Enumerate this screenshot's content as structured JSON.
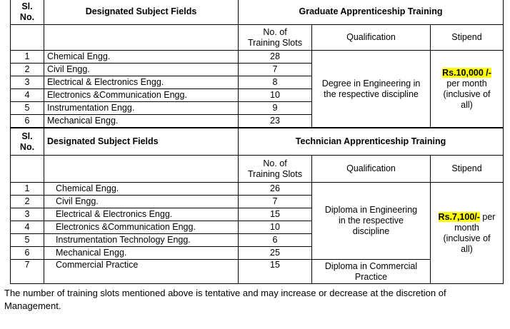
{
  "graduate": {
    "header": {
      "sl": "Sl.",
      "no": "No.",
      "fields": "Designated Subject Fields",
      "title": "Graduate Apprenticeship Training"
    },
    "subheader": {
      "slots_line1": "No. of",
      "slots_line2": "Training Slots",
      "qualification": "Qualification",
      "stipend": "Stipend"
    },
    "rows": [
      {
        "sl": "1",
        "field": "Chemical Engg.",
        "slots": "28"
      },
      {
        "sl": "2",
        "field": "Civil Engg.",
        "slots": "7"
      },
      {
        "sl": "3",
        "field": "Electrical & Electronics Engg.",
        "slots": "8"
      },
      {
        "sl": "4",
        "field": "Electronics &Communication Engg.",
        "slots": "10"
      },
      {
        "sl": "5",
        "field": "Instrumentation Engg.",
        "slots": "9"
      },
      {
        "sl": "6",
        "field": "Mechanical Engg.",
        "slots": "23"
      }
    ],
    "qualification_line1": "Degree in Engineering in",
    "qualification_line2": "the respective discipline",
    "stipend_amount": "Rs.10,000 /-",
    "stipend_line2": "per month",
    "stipend_line3": "(inclusive of",
    "stipend_line4": "all)"
  },
  "technician": {
    "header": {
      "sl": "Sl.",
      "no": "No.",
      "fields": "Designated Subject Fields",
      "title": "Technician Apprenticeship Training"
    },
    "subheader": {
      "slots_line1": "No. of",
      "slots_line2": "Training Slots",
      "qualification": "Qualification",
      "stipend": "Stipend"
    },
    "rows": [
      {
        "sl": "1",
        "field": "Chemical Engg.",
        "slots": "26"
      },
      {
        "sl": "2",
        "field": "Civil Engg.",
        "slots": "7"
      },
      {
        "sl": "3",
        "field": "Electrical & Electronics Engg.",
        "slots": "15"
      },
      {
        "sl": "4",
        "field": "Electronics &Communication Engg.",
        "slots": "10"
      },
      {
        "sl": "5",
        "field": "Instrumentation Technology Engg.",
        "slots": "6"
      },
      {
        "sl": "6",
        "field": "Mechanical Engg.",
        "slots": "25"
      },
      {
        "sl": "7",
        "field": "Commercial Practice",
        "slots": "15"
      }
    ],
    "qualification_line1": "Diploma in Engineering",
    "qualification_line2": "in the respective",
    "qualification_line3": "discipline",
    "commercial_qualification_line1": "Diploma in Commercial",
    "commercial_qualification_line2": "Practice",
    "stipend_amount": "Rs.7,100/-",
    "stipend_suffix": " per",
    "stipend_line2": "month",
    "stipend_line3": "(inclusive of",
    "stipend_line4": "all)"
  },
  "note": "The number of training slots mentioned above is tentative and may increase or decrease at the discretion of Management."
}
